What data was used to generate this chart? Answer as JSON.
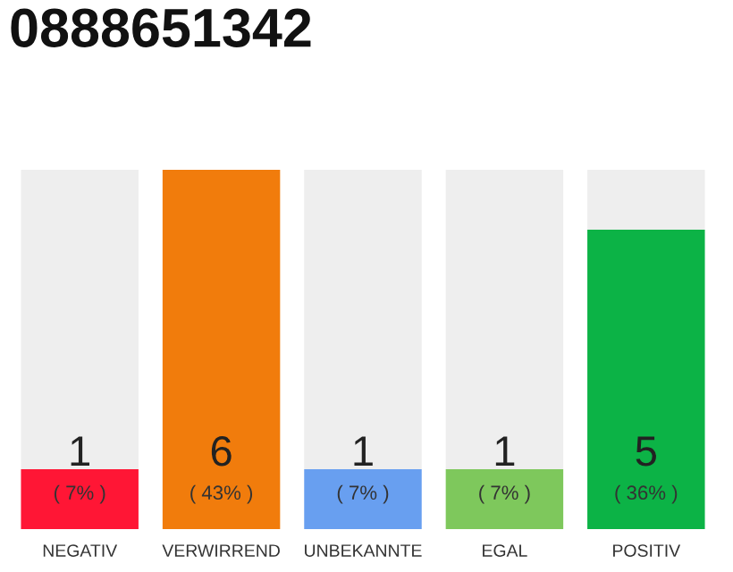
{
  "chart_data": {
    "type": "bar",
    "title": "0888651342",
    "stacked": true,
    "tick_labels": "x",
    "grid": false,
    "legend": false,
    "categories": [
      "NEGATIV",
      "VERWIRREND",
      "UNBEKANNTE",
      "EGAL",
      "POSITIV"
    ],
    "series": [
      {
        "colors": [
          "#ff1635",
          "#f17c0c",
          "#689ff0",
          "#7ec85c",
          "#0cb346"
        ],
        "values": [
          1,
          6,
          1,
          1,
          5
        ],
        "value_labels": [
          "1",
          "6",
          "1",
          "1",
          "5"
        ]
      },
      {
        "color": "#eeeeee",
        "values": [
          5,
          0,
          5,
          5,
          1
        ]
      }
    ],
    "ylim": [
      0,
      6
    ],
    "annotations": [
      "( 7% )",
      "( 43% )",
      "( 7% )",
      "( 7% )",
      "( 36% )"
    ]
  }
}
